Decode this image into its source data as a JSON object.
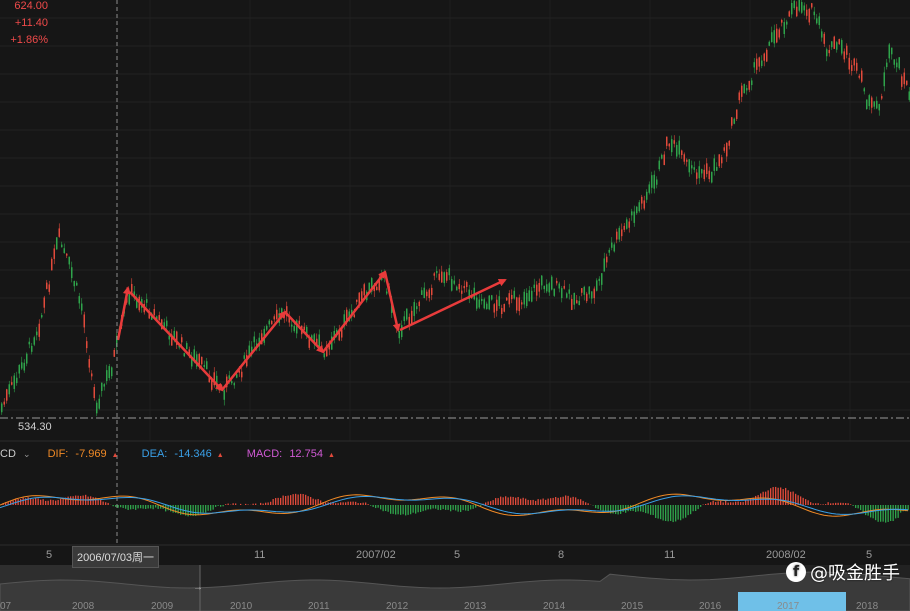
{
  "quote": {
    "price": "624.00",
    "change": "+11.40",
    "change_pct": "+1.86%"
  },
  "reference_line_label": "534.30",
  "macd": {
    "name_partial": "CD",
    "dropdown_icon": "chevron-down-icon",
    "dif": {
      "label": "DIF:",
      "value": "-7.969",
      "arrow": "▲",
      "color": "#f08a26"
    },
    "dea": {
      "label": "DEA:",
      "value": "-14.346",
      "arrow": "▲",
      "color": "#3aa0e8"
    },
    "macd": {
      "label": "MACD:",
      "value": "12.754",
      "arrow": "▲",
      "color": "#d05ad4"
    }
  },
  "x_axis": [
    "5",
    "11",
    "2007/02",
    "5",
    "8",
    "11",
    "2008/02",
    "5"
  ],
  "crosshair_label": "2006/07/03周一",
  "navigator_years": [
    "07",
    "2008",
    "2009",
    "2010",
    "2011",
    "2012",
    "2013",
    "2014",
    "2015",
    "2016",
    "2017",
    "2018"
  ],
  "navigator_arrow": "→",
  "watermark": "@吸金胜手",
  "colors": {
    "up": "#e24a3b",
    "down": "#2fa44b",
    "annotation": "#e83b3b",
    "background": "#161616"
  }
}
